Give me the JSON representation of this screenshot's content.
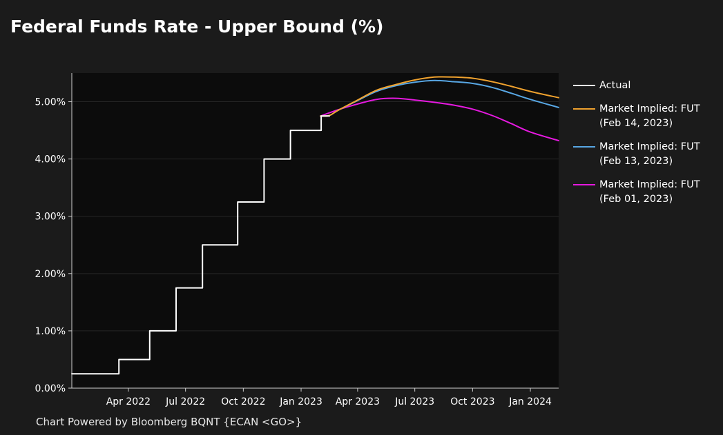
{
  "title": "Federal Funds Rate - Upper Bound (%)",
  "footer": "Chart Powered by Bloomberg BQNT {ECAN <GO>}",
  "colors": {
    "background": "#1b1b1b",
    "plot_background": "#0c0c0c",
    "actual": "#ffffff",
    "feb14": "#f0a22e",
    "feb13": "#58a7e4",
    "feb01": "#e619e0"
  },
  "chart_data": {
    "type": "line",
    "title": "Federal Funds Rate - Upper Bound (%)",
    "xlabel": "",
    "ylabel": "",
    "ylim": [
      0,
      5.5
    ],
    "xlim": [
      "2022-01-01",
      "2024-02-15"
    ],
    "grid": true,
    "legend_position": "right",
    "y_ticks": [
      0,
      1,
      2,
      3,
      4,
      5
    ],
    "y_tick_labels": [
      "0.00%",
      "1.00%",
      "2.00%",
      "3.00%",
      "4.00%",
      "5.00%"
    ],
    "x_ticks": [
      "2022-04-01",
      "2022-07-01",
      "2022-10-01",
      "2023-01-01",
      "2023-04-01",
      "2023-07-01",
      "2023-10-01",
      "2024-01-01"
    ],
    "x_tick_labels": [
      "Apr 2022",
      "Jul 2022",
      "Oct 2022",
      "Jan 2023",
      "Apr 2023",
      "Jul 2023",
      "Oct 2023",
      "Jan 2024"
    ],
    "series": [
      {
        "name": "Actual",
        "color": "#ffffff",
        "step": true,
        "x": [
          "2022-01-01",
          "2022-03-17",
          "2022-05-05",
          "2022-06-16",
          "2022-07-28",
          "2022-09-22",
          "2022-11-03",
          "2022-12-15",
          "2023-02-02",
          "2023-02-15"
        ],
        "y": [
          0.25,
          0.5,
          1.0,
          1.75,
          2.5,
          3.25,
          4.0,
          4.5,
          4.75,
          4.75
        ]
      },
      {
        "name": "Market Implied: FUT\n(Feb 14, 2023)",
        "color": "#f0a22e",
        "x": [
          "2023-02-01",
          "2023-02-15",
          "2023-03-01",
          "2023-04-01",
          "2023-05-01",
          "2023-06-01",
          "2023-07-01",
          "2023-08-01",
          "2023-09-01",
          "2023-10-01",
          "2023-11-01",
          "2023-12-01",
          "2024-01-01",
          "2024-02-15"
        ],
        "y": [
          4.75,
          4.76,
          4.85,
          5.03,
          5.2,
          5.3,
          5.38,
          5.43,
          5.43,
          5.41,
          5.35,
          5.27,
          5.18,
          5.07
        ]
      },
      {
        "name": "Market Implied: FUT\n(Feb 13, 2023)",
        "color": "#58a7e4",
        "x": [
          "2023-02-01",
          "2023-02-15",
          "2023-03-01",
          "2023-04-01",
          "2023-05-01",
          "2023-06-01",
          "2023-07-01",
          "2023-08-01",
          "2023-09-01",
          "2023-10-01",
          "2023-11-01",
          "2023-12-01",
          "2024-01-01",
          "2024-02-15"
        ],
        "y": [
          4.75,
          4.76,
          4.85,
          5.02,
          5.18,
          5.28,
          5.34,
          5.37,
          5.35,
          5.32,
          5.25,
          5.15,
          5.04,
          4.9
        ]
      },
      {
        "name": "Market Implied: FUT\n(Feb 01, 2023)",
        "color": "#e619e0",
        "x": [
          "2023-02-01",
          "2023-03-01",
          "2023-04-01",
          "2023-05-01",
          "2023-06-01",
          "2023-07-01",
          "2023-08-01",
          "2023-09-01",
          "2023-10-01",
          "2023-11-01",
          "2023-12-01",
          "2024-01-01",
          "2024-02-15"
        ],
        "y": [
          4.75,
          4.86,
          4.96,
          5.04,
          5.06,
          5.03,
          4.99,
          4.94,
          4.87,
          4.76,
          4.62,
          4.47,
          4.32
        ]
      }
    ]
  }
}
